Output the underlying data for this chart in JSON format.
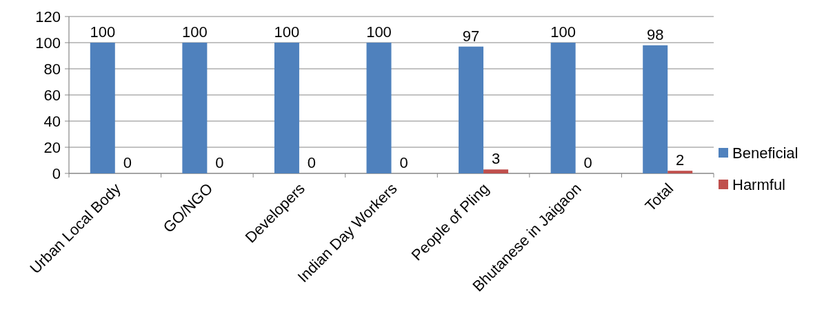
{
  "chart_data": {
    "type": "bar",
    "categories": [
      "Urban Local Body",
      "GO/NGO",
      "Developers",
      "Indian Day Workers",
      "People of Pling",
      "Bhutanese in Jaigaon",
      "Total"
    ],
    "series": [
      {
        "name": "Beneficial",
        "color": "#4f81bd",
        "values": [
          100,
          100,
          100,
          100,
          97,
          100,
          98
        ]
      },
      {
        "name": "Harmful",
        "color": "#c0504d",
        "values": [
          0,
          0,
          0,
          0,
          3,
          0,
          2
        ]
      }
    ],
    "ylim": [
      0,
      120
    ],
    "yticks": [
      0,
      20,
      40,
      60,
      80,
      100,
      120
    ],
    "grid": "y",
    "legend": "right",
    "data_labels": true
  }
}
